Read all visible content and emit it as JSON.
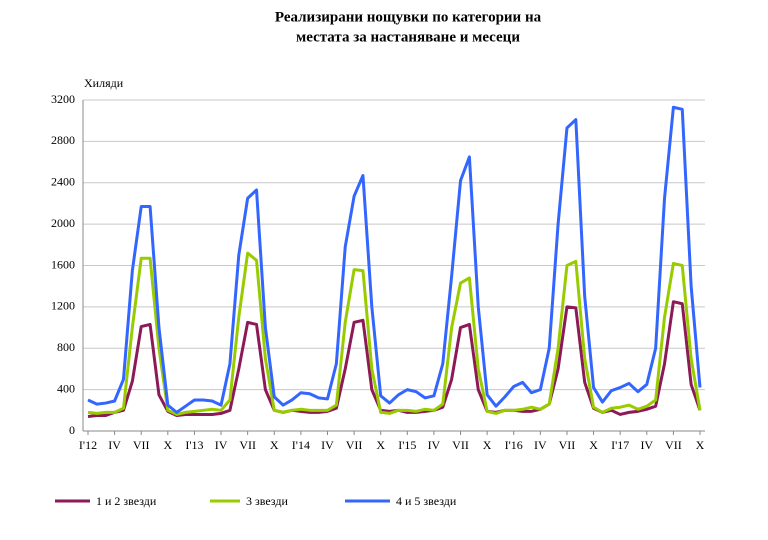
{
  "chart_data": {
    "type": "line",
    "title": [
      "Реализирани нощувки по категории на",
      "местата за настаняване и месеци"
    ],
    "y_label": "Хиляди",
    "categories": [
      "I'12",
      null,
      null,
      "IV",
      null,
      null,
      "VII",
      null,
      null,
      "X",
      null,
      null,
      "I'13",
      null,
      null,
      "IV",
      null,
      null,
      "VII",
      null,
      null,
      "X",
      null,
      null,
      "I'14",
      null,
      null,
      "IV",
      null,
      null,
      "VII",
      null,
      null,
      "X",
      null,
      null,
      "I'15",
      null,
      null,
      "IV",
      null,
      null,
      "VII",
      null,
      null,
      "X",
      null,
      null,
      "I'16",
      null,
      null,
      "IV",
      null,
      null,
      "VII",
      null,
      null,
      "X",
      null,
      null,
      "I'17",
      null,
      null,
      "IV",
      null,
      null,
      "VII",
      null,
      null,
      "X"
    ],
    "series": [
      {
        "name": "1 и 2 звезди",
        "color": "#8b1a56",
        "values": [
          140,
          150,
          150,
          180,
          200,
          480,
          1010,
          1030,
          350,
          190,
          150,
          160,
          160,
          160,
          160,
          170,
          200,
          600,
          1050,
          1030,
          400,
          200,
          180,
          200,
          190,
          180,
          180,
          190,
          220,
          600,
          1050,
          1070,
          400,
          200,
          190,
          200,
          180,
          180,
          190,
          200,
          230,
          500,
          1000,
          1030,
          400,
          190,
          180,
          200,
          200,
          190,
          190,
          210,
          260,
          600,
          1200,
          1190,
          470,
          220,
          180,
          200,
          160,
          180,
          190,
          210,
          240,
          650,
          1250,
          1230,
          450,
          200
        ]
      },
      {
        "name": "3 звезди",
        "color": "#99cc00",
        "values": [
          180,
          170,
          180,
          180,
          220,
          1000,
          1670,
          1670,
          800,
          200,
          160,
          180,
          190,
          200,
          210,
          200,
          300,
          1100,
          1720,
          1650,
          700,
          200,
          180,
          200,
          210,
          200,
          200,
          200,
          250,
          1050,
          1560,
          1550,
          600,
          180,
          170,
          200,
          200,
          190,
          210,
          200,
          260,
          1000,
          1430,
          1480,
          600,
          190,
          170,
          200,
          200,
          210,
          230,
          210,
          260,
          800,
          1600,
          1640,
          700,
          230,
          180,
          220,
          230,
          250,
          210,
          240,
          300,
          1100,
          1620,
          1600,
          700,
          200
        ]
      },
      {
        "name": "4 и 5 звезди",
        "color": "#3366ff",
        "values": [
          300,
          260,
          270,
          290,
          500,
          1550,
          2170,
          2170,
          1000,
          250,
          180,
          240,
          300,
          300,
          290,
          250,
          650,
          1700,
          2250,
          2330,
          1000,
          330,
          250,
          300,
          370,
          360,
          320,
          310,
          650,
          1780,
          2270,
          2470,
          1200,
          340,
          270,
          350,
          400,
          380,
          320,
          340,
          650,
          1500,
          2420,
          2650,
          1200,
          350,
          240,
          330,
          430,
          470,
          370,
          400,
          800,
          2000,
          2930,
          3010,
          1300,
          420,
          280,
          390,
          420,
          460,
          380,
          450,
          800,
          2250,
          3130,
          3110,
          1400,
          420
        ]
      }
    ],
    "ylim": [
      0,
      3200
    ],
    "yticks": [
      0,
      400,
      800,
      1200,
      1600,
      2000,
      2400,
      2800,
      3200
    ],
    "grid": true,
    "legend": "bottom"
  }
}
